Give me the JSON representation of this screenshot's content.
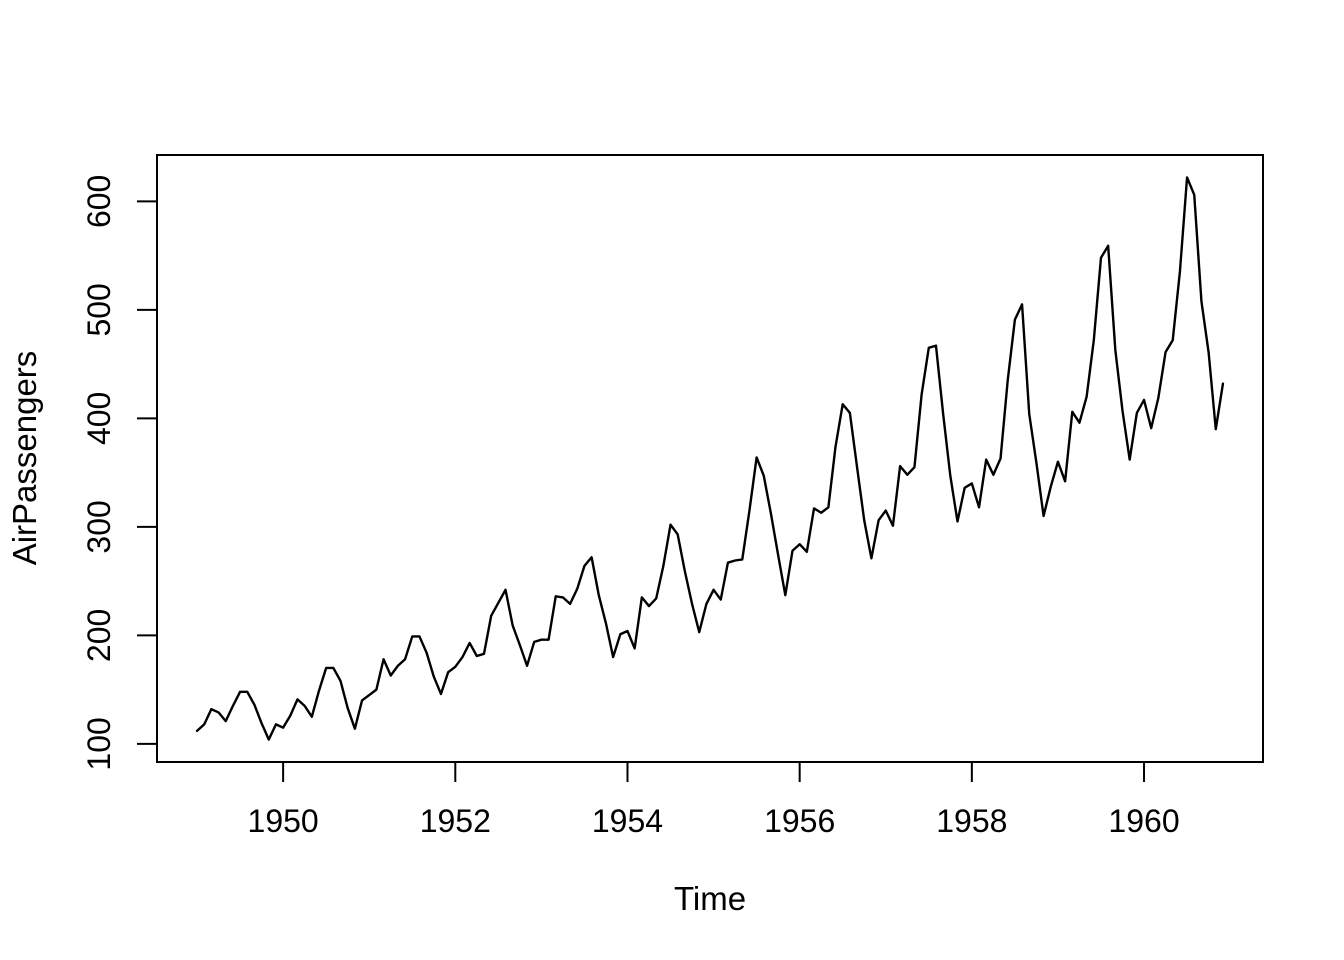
{
  "chart_data": {
    "type": "line",
    "title": "",
    "xlabel": "Time",
    "ylabel": "AirPassengers",
    "series": [
      {
        "name": "AirPassengers",
        "start_year": 1949,
        "frequency": 12,
        "values": [
          112,
          118,
          132,
          129,
          121,
          135,
          148,
          148,
          136,
          119,
          104,
          118,
          115,
          126,
          141,
          135,
          125,
          149,
          170,
          170,
          158,
          133,
          114,
          140,
          145,
          150,
          178,
          163,
          172,
          178,
          199,
          199,
          184,
          162,
          146,
          166,
          171,
          180,
          193,
          181,
          183,
          218,
          230,
          242,
          209,
          191,
          172,
          194,
          196,
          196,
          236,
          235,
          229,
          243,
          264,
          272,
          237,
          211,
          180,
          201,
          204,
          188,
          235,
          227,
          234,
          264,
          302,
          293,
          259,
          229,
          203,
          229,
          242,
          233,
          267,
          269,
          270,
          315,
          364,
          347,
          312,
          274,
          237,
          278,
          284,
          277,
          317,
          313,
          318,
          374,
          413,
          405,
          355,
          306,
          271,
          306,
          315,
          301,
          356,
          348,
          355,
          422,
          465,
          467,
          404,
          347,
          305,
          336,
          340,
          318,
          362,
          348,
          363,
          435,
          491,
          505,
          404,
          359,
          310,
          337,
          360,
          342,
          406,
          396,
          420,
          472,
          548,
          559,
          463,
          407,
          362,
          405,
          417,
          391,
          419,
          461,
          472,
          535,
          622,
          606,
          508,
          461,
          390,
          432
        ]
      }
    ],
    "x_ticks": [
      1950,
      1952,
      1954,
      1956,
      1958,
      1960
    ],
    "y_ticks": [
      100,
      200,
      300,
      400,
      500,
      600
    ],
    "xlim": [
      1948.535,
      1961.382
    ],
    "ylim": [
      83.3,
      642.7
    ],
    "grid": false,
    "legend": "none",
    "line_color": "#000000",
    "background_color": "#ffffff"
  }
}
